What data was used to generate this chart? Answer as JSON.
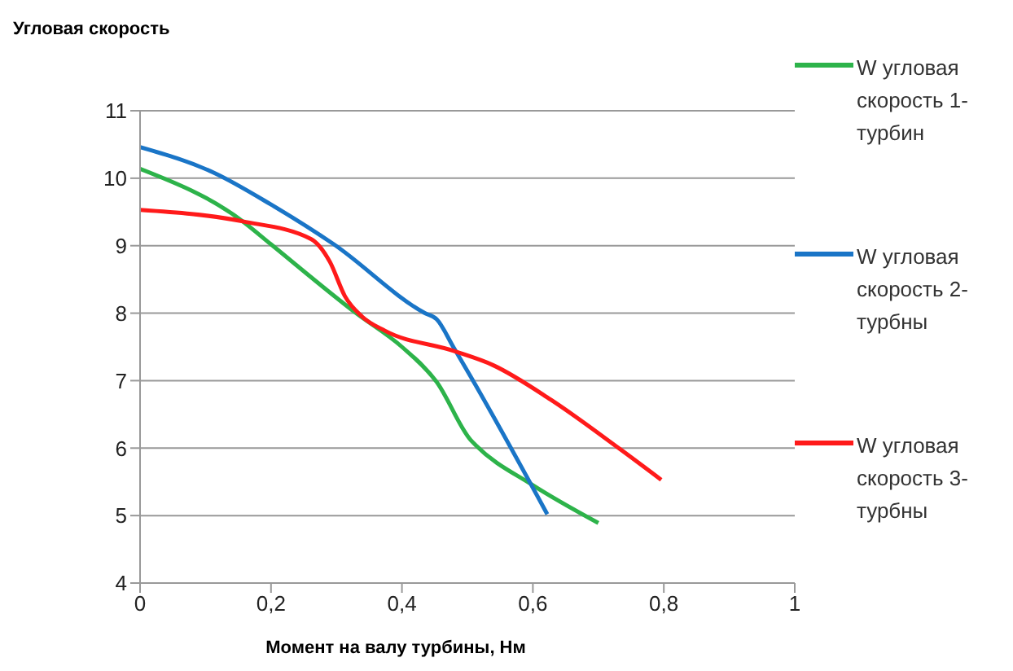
{
  "chart_data": {
    "type": "line",
    "ylabel": "Угловая скорость",
    "xlabel": "Момент на валу турбины, Нм",
    "xlim": [
      0,
      1
    ],
    "xticks": [
      {
        "value": 0,
        "label": "0"
      },
      {
        "value": 0.2,
        "label": "0,2"
      },
      {
        "value": 0.4,
        "label": "0,4"
      },
      {
        "value": 0.6,
        "label": "0,6"
      },
      {
        "value": 0.8,
        "label": "0,8"
      },
      {
        "value": 1,
        "label": "1"
      }
    ],
    "ylim": [
      4,
      11
    ],
    "yticks": [
      4,
      5,
      6,
      7,
      8,
      9,
      10,
      11
    ],
    "grid": "y",
    "legend": "right",
    "marker": "none",
    "line_style": "solid",
    "series": [
      {
        "name": "W угловая скорость 1-турбин",
        "color": "#2db34a",
        "x": [
          0,
          0.157,
          0.2,
          0.33,
          0.4,
          0.453,
          0.505,
          0.513,
          0.6,
          0.7
        ],
        "values": [
          10.14,
          9.36,
          9.02,
          8.0,
          7.5,
          6.98,
          6.12,
          6.04,
          5.45,
          4.89
        ]
      },
      {
        "name": "W угловая скорость 2-турбны",
        "color": "#1a75c7",
        "x": [
          0,
          0.113,
          0.2,
          0.296,
          0.435,
          0.453,
          0.479,
          0.505,
          0.622
        ],
        "values": [
          10.46,
          10.08,
          9.61,
          9.02,
          8.0,
          7.91,
          7.49,
          7.06,
          5.02
        ]
      },
      {
        "name": "W угловая скорость 3-турбны",
        "color": "#ff1a1a",
        "x": [
          0,
          0.157,
          0.261,
          0.29,
          0.313,
          0.339,
          0.374,
          0.479,
          0.539,
          0.627,
          0.731,
          0.796
        ],
        "values": [
          9.53,
          9.36,
          9.1,
          8.76,
          8.25,
          7.95,
          7.74,
          7.44,
          7.23,
          6.72,
          6.0,
          5.53
        ]
      }
    ]
  }
}
